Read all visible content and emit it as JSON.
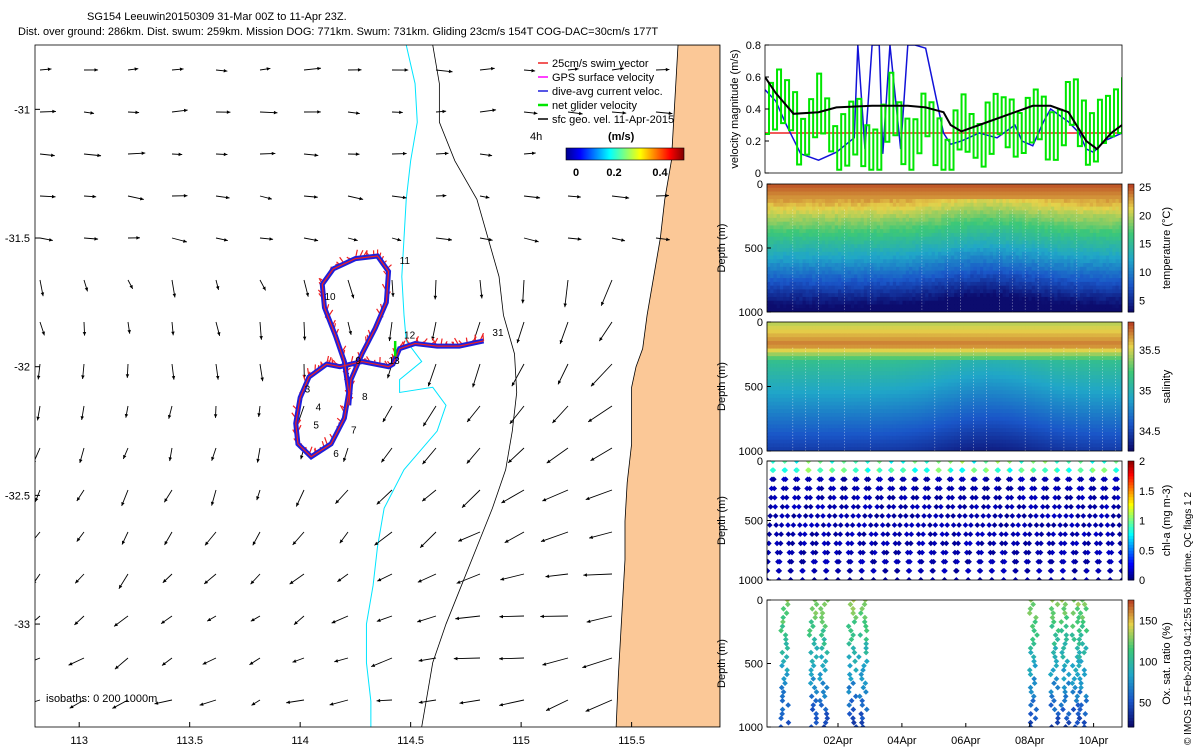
{
  "title": {
    "line1": "SG154 Leeuwin20150309 31-Mar 00Z to 11-Apr 23Z.",
    "line2": "Dist. over ground: 286km. Dist. swum: 259km. Mission DOG: 771km. Swum: 731km. Gliding 23cm/s 154T COG-DAC=30cm/s 177T"
  },
  "credit": "© IMOS 15-Feb-2019 04:12:55 Hobart time. QC flags 1  2",
  "colors": {
    "land": "#fbc897",
    "isobath_200": "#00e5ff",
    "isobath_1000": "#000000",
    "track": "#1e1edc",
    "swim": "#ee2222",
    "arrow": "#000000",
    "net": "#00e600",
    "dac": "#1212d8"
  },
  "chart_data": [
    {
      "type": "scatter",
      "name": "map",
      "xlim": [
        112.8,
        115.9
      ],
      "ylim": [
        -33.4,
        -30.75
      ],
      "xticks": [
        "113",
        "113.5",
        "114",
        "114.5",
        "115",
        "115.5"
      ],
      "yticks": [
        "-31",
        "-31.5",
        "-32",
        "-32.5",
        "-33"
      ],
      "legend": {
        "placement": "top-right",
        "entries": [
          "25cm/s swim vector",
          "GPS surface velocity",
          "dive-avg current veloc.",
          "net glider velocity",
          "sfc geo. vel. 11-Apr-2015"
        ],
        "colorbar_title": "(m/s)",
        "colorbar_ticks": [
          "0",
          "0.2",
          "0.4"
        ],
        "scale_label": "4h"
      },
      "isobath_label": "isobaths: 0   200   1000m",
      "coast": [
        [
          115.71,
          -30.75
        ],
        [
          115.7,
          -30.9
        ],
        [
          115.69,
          -31.05
        ],
        [
          115.68,
          -31.2
        ],
        [
          115.65,
          -31.35
        ],
        [
          115.63,
          -31.5
        ],
        [
          115.6,
          -31.65
        ],
        [
          115.57,
          -31.8
        ],
        [
          115.55,
          -31.93
        ],
        [
          115.52,
          -32.0
        ],
        [
          115.5,
          -32.08
        ],
        [
          115.5,
          -32.2
        ],
        [
          115.5,
          -32.3
        ],
        [
          115.48,
          -32.45
        ],
        [
          115.47,
          -32.6
        ],
        [
          115.47,
          -32.75
        ],
        [
          115.46,
          -32.9
        ],
        [
          115.45,
          -33.05
        ],
        [
          115.44,
          -33.2
        ],
        [
          115.43,
          -33.4
        ]
      ],
      "isobath_200": [
        [
          114.48,
          -30.75
        ],
        [
          114.52,
          -30.9
        ],
        [
          114.53,
          -31.05
        ],
        [
          114.5,
          -31.2
        ],
        [
          114.48,
          -31.35
        ],
        [
          114.47,
          -31.5
        ],
        [
          114.46,
          -31.65
        ],
        [
          114.47,
          -31.8
        ],
        [
          114.48,
          -31.9
        ],
        [
          114.55,
          -31.98
        ],
        [
          114.45,
          -32.05
        ],
        [
          114.45,
          -32.1
        ],
        [
          114.6,
          -32.08
        ],
        [
          114.66,
          -32.15
        ],
        [
          114.62,
          -32.25
        ],
        [
          114.47,
          -32.4
        ],
        [
          114.38,
          -32.55
        ],
        [
          114.35,
          -32.7
        ],
        [
          114.33,
          -32.85
        ],
        [
          114.3,
          -33.0
        ],
        [
          114.3,
          -33.15
        ],
        [
          114.32,
          -33.3
        ],
        [
          114.32,
          -33.4
        ]
      ],
      "isobath_1000": [
        [
          114.6,
          -30.75
        ],
        [
          114.63,
          -30.9
        ],
        [
          114.63,
          -31.05
        ],
        [
          114.7,
          -31.2
        ],
        [
          114.8,
          -31.35
        ],
        [
          114.85,
          -31.5
        ],
        [
          114.9,
          -31.65
        ],
        [
          114.92,
          -31.8
        ],
        [
          114.97,
          -31.95
        ],
        [
          114.98,
          -32.1
        ],
        [
          114.96,
          -32.25
        ],
        [
          114.93,
          -32.4
        ],
        [
          114.87,
          -32.55
        ],
        [
          114.8,
          -32.7
        ],
        [
          114.73,
          -32.85
        ],
        [
          114.66,
          -33.0
        ],
        [
          114.6,
          -33.15
        ],
        [
          114.57,
          -33.3
        ],
        [
          114.55,
          -33.4
        ]
      ],
      "track": [
        [
          114.83,
          -31.9
        ],
        [
          114.72,
          -31.92
        ],
        [
          114.62,
          -31.92
        ],
        [
          114.52,
          -31.91
        ],
        [
          114.45,
          -31.93
        ],
        [
          114.42,
          -31.99
        ],
        [
          114.4,
          -32.0
        ],
        [
          114.28,
          -31.98
        ],
        [
          114.18,
          -32.0
        ],
        [
          114.12,
          -31.99
        ],
        [
          114.04,
          -32.04
        ],
        [
          114.0,
          -32.12
        ],
        [
          113.98,
          -32.22
        ],
        [
          113.99,
          -32.3
        ],
        [
          114.05,
          -32.35
        ],
        [
          114.14,
          -32.3
        ],
        [
          114.2,
          -32.2
        ],
        [
          114.22,
          -32.1
        ],
        [
          114.2,
          -31.98
        ],
        [
          114.16,
          -31.88
        ],
        [
          114.11,
          -31.77
        ],
        [
          114.1,
          -31.68
        ],
        [
          114.15,
          -31.62
        ],
        [
          114.25,
          -31.58
        ],
        [
          114.35,
          -31.57
        ],
        [
          114.4,
          -31.63
        ],
        [
          114.39,
          -31.75
        ],
        [
          114.34,
          -31.85
        ],
        [
          114.28,
          -31.95
        ],
        [
          114.23,
          -32.05
        ],
        [
          114.22,
          -32.15
        ]
      ],
      "track_labels": [
        {
          "label": "3",
          "x": 114.02,
          "y": -32.1
        },
        {
          "label": "4",
          "x": 114.07,
          "y": -32.17
        },
        {
          "label": "5",
          "x": 114.06,
          "y": -32.24
        },
        {
          "label": "6",
          "x": 114.15,
          "y": -32.35
        },
        {
          "label": "7",
          "x": 114.23,
          "y": -32.26
        },
        {
          "label": "8",
          "x": 114.28,
          "y": -32.13
        },
        {
          "label": "9",
          "x": 114.25,
          "y": -31.99
        },
        {
          "label": "10",
          "x": 114.11,
          "y": -31.74
        },
        {
          "label": "11",
          "x": 114.45,
          "y": -31.6
        },
        {
          "label": "12",
          "x": 114.47,
          "y": -31.89
        },
        {
          "label": "13",
          "x": 114.4,
          "y": -31.99
        },
        {
          "label": "31",
          "x": 114.87,
          "y": -31.88
        }
      ],
      "arrows_note": "sfc geo. vel. 11-Apr-2015"
    },
    {
      "type": "line",
      "name": "velocity",
      "ylabel": "velocity magnitude (m/s)",
      "ylim": [
        0,
        0.8
      ],
      "yticks": [
        "0",
        "0.2",
        "0.4",
        "0.6",
        "0.8"
      ],
      "series": [
        {
          "name": "25cm/s swim vector",
          "color": "#ee2222",
          "x": [
            0,
            1
          ],
          "values": [
            0.25,
            0.25
          ]
        },
        {
          "name": "dive-avg current veloc.",
          "color": "#1212d8",
          "x": [
            0,
            0.03,
            0.06,
            0.1,
            0.15,
            0.2,
            0.25,
            0.26,
            0.28,
            0.3,
            0.32,
            0.33,
            0.35,
            0.38,
            0.4,
            0.42,
            0.45,
            0.5,
            0.52,
            0.55,
            0.6,
            0.65,
            0.7,
            0.72,
            0.75,
            0.78,
            0.8,
            0.85,
            0.88,
            0.9,
            0.92,
            0.95,
            0.97,
            1
          ],
          "values": [
            0.52,
            0.45,
            0.3,
            0.12,
            0.08,
            0.13,
            0.22,
            0.8,
            0.15,
            0.8,
            0.8,
            0.12,
            0.8,
            0.15,
            0.8,
            0.8,
            0.78,
            0.25,
            0.18,
            0.2,
            0.25,
            0.22,
            0.3,
            0.2,
            0.17,
            0.32,
            0.4,
            0.32,
            0.25,
            0.15,
            0.13,
            0.2,
            0.22,
            0.25
          ]
        },
        {
          "name": "net glider velocity",
          "color": "#00e600",
          "x": [
            0,
            0.05,
            0.1,
            0.15,
            0.2,
            0.25,
            0.3,
            0.35,
            0.4,
            0.45,
            0.5,
            0.55,
            0.6,
            0.65,
            0.7,
            0.75,
            0.8,
            0.85,
            0.9,
            0.95,
            1
          ],
          "values": [
            0.38,
            0.5,
            0.15,
            0.45,
            0.1,
            0.3,
            0.05,
            0.45,
            0.1,
            0.35,
            0.05,
            0.3,
            0.15,
            0.35,
            0.2,
            0.4,
            0.15,
            0.45,
            0.2,
            0.3,
            0.4
          ]
        },
        {
          "name": "net",
          "color": "#000000",
          "x": [
            0,
            0.03,
            0.08,
            0.15,
            0.2,
            0.3,
            0.4,
            0.45,
            0.5,
            0.52,
            0.55,
            0.6,
            0.7,
            0.75,
            0.8,
            0.85,
            0.9,
            0.93,
            0.97,
            1
          ],
          "values": [
            0.6,
            0.5,
            0.37,
            0.38,
            0.41,
            0.42,
            0.42,
            0.41,
            0.38,
            0.3,
            0.26,
            0.3,
            0.38,
            0.42,
            0.42,
            0.38,
            0.2,
            0.15,
            0.25,
            0.3
          ]
        }
      ]
    },
    {
      "type": "heatmap",
      "name": "temperature",
      "ylabel": "Depth (m)",
      "yticks": [
        "0",
        "500",
        "1000"
      ],
      "cbar_label": "temperature (°C)",
      "cbar_ticks": [
        "25",
        "20",
        "15",
        "10",
        "5"
      ],
      "cbar_range": [
        3,
        25.5
      ]
    },
    {
      "type": "heatmap",
      "name": "salinity",
      "ylabel": "Depth (m)",
      "yticks": [
        "0",
        "500",
        "1000"
      ],
      "cbar_label": "salinity",
      "cbar_ticks": [
        "35.5",
        "35",
        "34.5"
      ],
      "cbar_range": [
        34.25,
        35.85
      ]
    },
    {
      "type": "scatter",
      "name": "chl-a",
      "ylabel": "Depth (m)",
      "yticks": [
        "0",
        "500",
        "1000"
      ],
      "cbar_label": "chl-a (mg m-3)",
      "cbar_ticks": [
        "2",
        "1.5",
        "1",
        "0.5",
        "0"
      ],
      "cbar_range": [
        0,
        2
      ]
    },
    {
      "type": "scatter",
      "name": "oxygen",
      "ylabel": "Depth (m)",
      "yticks": [
        "0",
        "500",
        "1000"
      ],
      "cbar_label": "Ox. sat. ratio (%)",
      "cbar_ticks": [
        "150",
        "100",
        "50"
      ],
      "cbar_range": [
        20,
        175
      ],
      "xticks": [
        "02Apr",
        "04Apr",
        "06Apr",
        "08Apr",
        "10Apr"
      ]
    }
  ]
}
